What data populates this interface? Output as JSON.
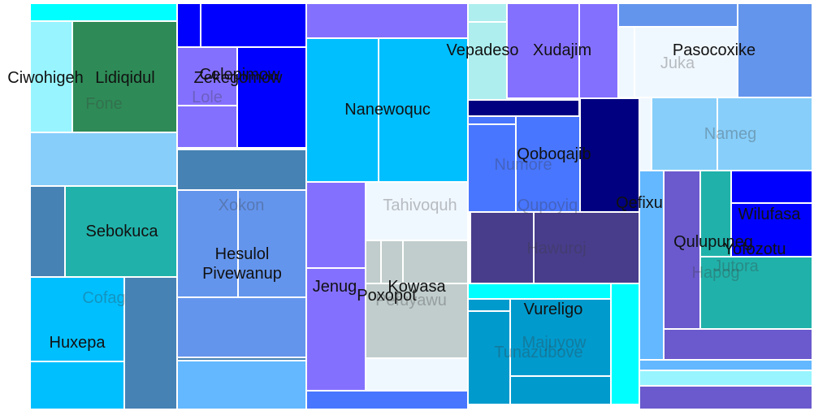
{
  "chart_data": {
    "type": "treemap",
    "title": "",
    "nodes": [
      {
        "label": "Fone",
        "color": "#2E8B57",
        "label_tone": "muted"
      },
      {
        "label": "Ciwohigeh",
        "color": "#98F5FF",
        "label_tone": "dark"
      },
      {
        "label": "Lidiqidul",
        "color": "#2E8B57",
        "label_tone": "dark"
      },
      {
        "label": "Sebokuca",
        "color": "#20B2AA",
        "label_tone": "dark"
      },
      {
        "label": "Cofag",
        "color": "#00BFFF",
        "label_tone": "muted"
      },
      {
        "label": "Huxepa",
        "color": "#00BFFF",
        "label_tone": "dark"
      },
      {
        "label": "Lole",
        "color": "#8470FF",
        "label_tone": "muted"
      },
      {
        "label": "Zekegomow",
        "color": "#0000FF",
        "label_tone": "dark"
      },
      {
        "label": "Celepimow",
        "color": "#0000FF",
        "label_tone": "dark"
      },
      {
        "label": "Xokon",
        "color": "#4682B4",
        "label_tone": "muted"
      },
      {
        "label": "Hesulol",
        "color": "#6495ED",
        "label_tone": "dark"
      },
      {
        "label": "Pivewanup",
        "color": "#6495ED",
        "label_tone": "dark"
      },
      {
        "label": "Nanewoquc",
        "color": "#00BFFF",
        "label_tone": "dark"
      },
      {
        "label": "Tahivoquh",
        "color": "#F0F8FF",
        "label_tone": "muted"
      },
      {
        "label": "Jenug",
        "color": "#8470FF",
        "label_tone": "dark"
      },
      {
        "label": "Kowasa",
        "color": "#C1CDCD",
        "label_tone": "dark"
      },
      {
        "label": "Poxopot",
        "color": "#C1CDCD",
        "label_tone": "dark"
      },
      {
        "label": "Pefuyawu",
        "color": "#C1CDCD",
        "label_tone": "muted"
      },
      {
        "label": "Vepadeso",
        "color": "#AEEEEE",
        "label_tone": "dark"
      },
      {
        "label": "Xudajim",
        "color": "#8470FF",
        "label_tone": "dark"
      },
      {
        "label": "Juka",
        "color": "#F0F8FF",
        "label_tone": "muted"
      },
      {
        "label": "Pasocoxike",
        "color": "#F0F8FF",
        "label_tone": "dark"
      },
      {
        "label": "Nameg",
        "color": "#87CEFA",
        "label_tone": "muted"
      },
      {
        "label": "Qoboqajib",
        "color": "#000080",
        "label_tone": "dark"
      },
      {
        "label": "Numore",
        "color": "#4876FF",
        "label_tone": "muted"
      },
      {
        "label": "Qupoyiq",
        "color": "#4876FF",
        "label_tone": "muted"
      },
      {
        "label": "Qefixu",
        "color": "#63B8FF",
        "label_tone": "dark"
      },
      {
        "label": "Hawuroj",
        "color": "#483D8B",
        "label_tone": "muted"
      },
      {
        "label": "Wilufasa",
        "color": "#0000FF",
        "label_tone": "dark"
      },
      {
        "label": "Yofozotu",
        "color": "#0000FF",
        "label_tone": "dark"
      },
      {
        "label": "Qulupuneg",
        "color": "#6A5ACD",
        "label_tone": "dark"
      },
      {
        "label": "Jutora",
        "color": "#20B2AA",
        "label_tone": "muted"
      },
      {
        "label": "Hapog",
        "color": "#20B2AA",
        "label_tone": "muted"
      },
      {
        "label": "Vureligo",
        "color": "#009ACD",
        "label_tone": "dark"
      },
      {
        "label": "Majuyow",
        "color": "#009ACD",
        "label_tone": "muted"
      },
      {
        "label": "Tunazubove",
        "color": "#009ACD",
        "label_tone": "muted"
      }
    ]
  }
}
